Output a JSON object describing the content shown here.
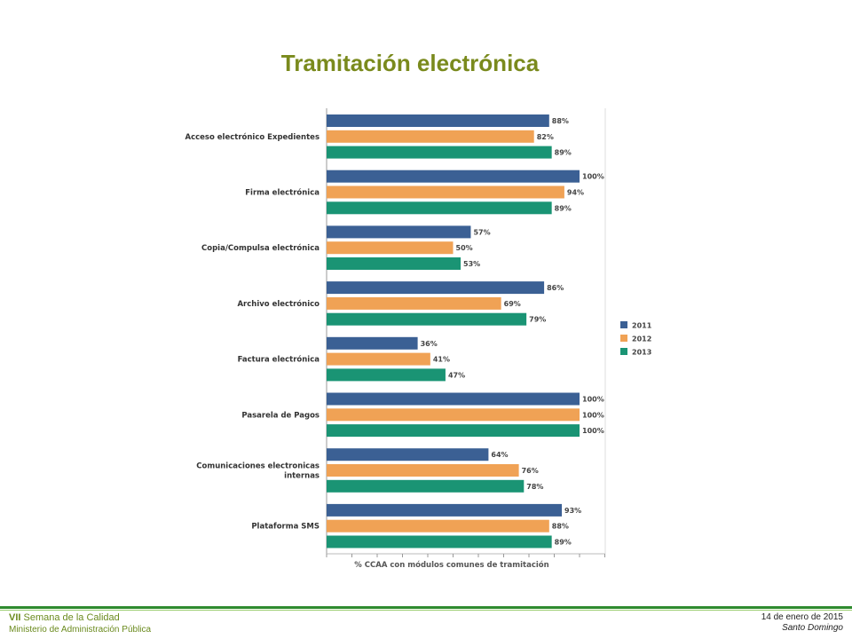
{
  "title": "Tramitación electrónica",
  "chart_data": {
    "type": "bar",
    "orientation": "horizontal",
    "categories": [
      "Acceso electrónico Expedientes",
      "Firma electrónica",
      "Copia/Compulsa electrónica",
      "Archivo electrónico",
      "Factura electrónica",
      "Pasarela de Pagos",
      "Comunicaciones electronicas internas",
      "Plataforma SMS"
    ],
    "series": [
      {
        "name": "2011",
        "color": "#3b6094",
        "values": [
          88,
          100,
          57,
          86,
          36,
          100,
          64,
          93
        ]
      },
      {
        "name": "2012",
        "color": "#f0a255",
        "values": [
          82,
          94,
          50,
          69,
          41,
          100,
          76,
          88
        ]
      },
      {
        "name": "2013",
        "color": "#1a9474",
        "values": [
          89,
          89,
          53,
          79,
          47,
          100,
          78,
          89
        ]
      }
    ],
    "value_suffix": "%",
    "xlabel": "% CCAA con módulos comunes de tramitación",
    "xlim": [
      0,
      110
    ],
    "legend_position": "right",
    "grid": false
  },
  "footer": {
    "event_roman": "VII",
    "event_name": "Semana de la Calidad",
    "ministry": "Ministerio de Administración Pública",
    "date": "14 de enero de 2015",
    "place": "Santo Domingo"
  }
}
